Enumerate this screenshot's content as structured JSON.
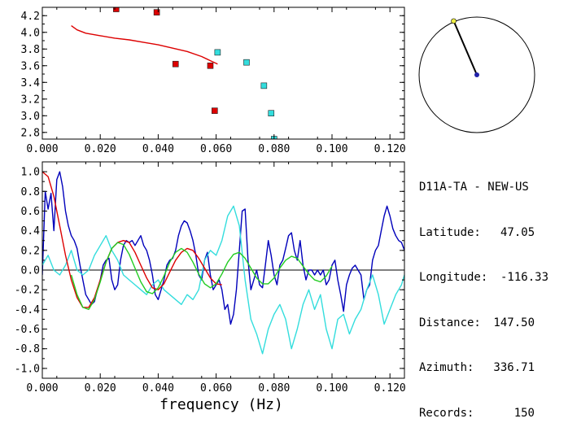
{
  "station": "D11A-TA - NEW-US",
  "info": [
    {
      "label": "Latitude:",
      "value": "47.05"
    },
    {
      "label": "Longitude:",
      "value": "-116.33"
    },
    {
      "label": "Distance:",
      "value": "147.50"
    },
    {
      "label": "Azimuth:",
      "value": "336.71"
    },
    {
      "label": "Records:",
      "value": "150"
    }
  ],
  "colors": {
    "red": "#dd0000",
    "cyan": "#33dddd",
    "blue": "#0000bb",
    "green": "#22cc22",
    "axis": "#000000",
    "dial_pointer_tip": "#eeee44"
  },
  "chart_data": [
    {
      "type": "scatter",
      "xlabel": "",
      "ylabel": "",
      "xlim": [
        0.0,
        0.125
      ],
      "ylim": [
        2.72,
        4.3
      ],
      "xticks": [
        "0.000",
        "0.020",
        "0.040",
        "0.060",
        "0.080",
        "0.100",
        "0.120"
      ],
      "yticks": [
        "2.8",
        "3.0",
        "3.2",
        "3.4",
        "3.6",
        "3.8",
        "4.0",
        "4.2"
      ],
      "series": [
        {
          "color": "red",
          "marker": "square",
          "x": [
            0.0255,
            0.0395,
            0.046,
            0.058,
            0.0595
          ],
          "y": [
            4.28,
            4.24,
            3.62,
            3.6,
            3.06
          ]
        },
        {
          "color": "cyan",
          "marker": "square",
          "x": [
            0.0605,
            0.0705,
            0.0765,
            0.079,
            0.08
          ],
          "y": [
            3.76,
            3.64,
            3.36,
            3.03,
            2.72
          ]
        },
        {
          "color": "red",
          "marker": "line",
          "x": [
            0.01,
            0.012,
            0.015,
            0.02,
            0.025,
            0.03,
            0.035,
            0.04,
            0.045,
            0.05,
            0.055,
            0.058,
            0.0605
          ],
          "y": [
            4.08,
            4.03,
            3.99,
            3.96,
            3.93,
            3.91,
            3.88,
            3.85,
            3.81,
            3.77,
            3.71,
            3.66,
            3.62
          ]
        }
      ]
    },
    {
      "type": "line",
      "xlabel": "frequency (Hz)",
      "ylabel": "",
      "xlim": [
        0.0,
        0.125
      ],
      "ylim": [
        -1.1,
        1.1
      ],
      "xticks": [
        "0.000",
        "0.020",
        "0.040",
        "0.060",
        "0.080",
        "0.100",
        "0.120"
      ],
      "yticks": [
        "1.0",
        "0.8",
        "0.6",
        "0.4",
        "0.2",
        "0.0",
        "-0.2",
        "-0.4",
        "-0.6",
        "-0.8",
        "-1.0"
      ],
      "series": [
        {
          "color": "blue",
          "x": [
            0,
            0.001,
            0.002,
            0.003,
            0.004,
            0.005,
            0.006,
            0.007,
            0.008,
            0.009,
            0.01,
            0.011,
            0.012,
            0.013,
            0.014,
            0.015,
            0.016,
            0.017,
            0.018,
            0.019,
            0.02,
            0.021,
            0.022,
            0.023,
            0.024,
            0.025,
            0.026,
            0.027,
            0.028,
            0.029,
            0.03,
            0.031,
            0.032,
            0.033,
            0.034,
            0.035,
            0.036,
            0.037,
            0.038,
            0.039,
            0.04,
            0.041,
            0.042,
            0.043,
            0.044,
            0.045,
            0.046,
            0.047,
            0.048,
            0.049,
            0.05,
            0.051,
            0.052,
            0.053,
            0.054,
            0.055,
            0.056,
            0.057,
            0.058,
            0.059,
            0.06,
            0.061,
            0.062,
            0.063,
            0.064,
            0.065,
            0.066,
            0.067,
            0.068,
            0.069,
            0.07,
            0.071,
            0.072,
            0.073,
            0.074,
            0.075,
            0.076,
            0.077,
            0.078,
            0.079,
            0.08,
            0.081,
            0.082,
            0.083,
            0.084,
            0.085,
            0.086,
            0.087,
            0.088,
            0.089,
            0.09,
            0.091,
            0.092,
            0.093,
            0.094,
            0.095,
            0.096,
            0.097,
            0.098,
            0.099,
            0.1,
            0.101,
            0.102,
            0.103,
            0.104,
            0.105,
            0.106,
            0.107,
            0.108,
            0.109,
            0.11,
            0.111,
            0.112,
            0.113,
            0.114,
            0.115,
            0.116,
            0.117,
            0.118,
            0.119,
            0.12,
            0.121,
            0.122,
            0.123,
            0.124,
            0.125
          ],
          "y": [
            -0.05,
            0.8,
            0.62,
            0.78,
            0.4,
            0.92,
            1.0,
            0.85,
            0.6,
            0.45,
            0.35,
            0.3,
            0.22,
            0.05,
            -0.1,
            -0.25,
            -0.3,
            -0.35,
            -0.32,
            -0.2,
            -0.1,
            0.05,
            0.1,
            0.12,
            -0.1,
            -0.2,
            -0.15,
            0.1,
            0.25,
            0.3,
            0.28,
            0.3,
            0.25,
            0.3,
            0.35,
            0.25,
            0.2,
            0.1,
            -0.05,
            -0.25,
            -0.3,
            -0.2,
            -0.1,
            0.05,
            0.1,
            0.12,
            0.2,
            0.35,
            0.45,
            0.5,
            0.48,
            0.4,
            0.3,
            0.15,
            -0.05,
            -0.1,
            0.1,
            0.18,
            -0.05,
            -0.2,
            -0.15,
            -0.1,
            -0.2,
            -0.4,
            -0.35,
            -0.55,
            -0.45,
            -0.2,
            0.2,
            0.6,
            0.62,
            0.1,
            -0.2,
            -0.1,
            0.0,
            -0.15,
            -0.18,
            0.05,
            0.3,
            0.15,
            -0.05,
            -0.15,
            0.05,
            0.1,
            0.22,
            0.35,
            0.38,
            0.2,
            0.1,
            0.3,
            0.05,
            -0.1,
            0.0,
            0.0,
            -0.05,
            0.0,
            -0.05,
            0.0,
            -0.15,
            -0.1,
            0.05,
            0.1,
            -0.1,
            -0.25,
            -0.42,
            -0.15,
            -0.05,
            0.02,
            0.05,
            0.0,
            -0.05,
            -0.3,
            -0.2,
            -0.15,
            0.1,
            0.2,
            0.25,
            0.4,
            0.55,
            0.65,
            0.55,
            0.42,
            0.35,
            0.3,
            0.28,
            0.2
          ]
        },
        {
          "color": "cyan",
          "x": [
            0,
            0.002,
            0.004,
            0.006,
            0.008,
            0.01,
            0.012,
            0.014,
            0.016,
            0.018,
            0.02,
            0.022,
            0.024,
            0.026,
            0.028,
            0.03,
            0.032,
            0.034,
            0.036,
            0.038,
            0.04,
            0.042,
            0.044,
            0.046,
            0.048,
            0.05,
            0.052,
            0.054,
            0.056,
            0.058,
            0.06,
            0.062,
            0.064,
            0.066,
            0.068,
            0.07,
            0.072,
            0.074,
            0.076,
            0.078,
            0.08,
            0.082,
            0.084,
            0.086,
            0.088,
            0.09,
            0.092,
            0.094,
            0.096,
            0.098,
            0.1,
            0.102,
            0.104,
            0.106,
            0.108,
            0.11,
            0.112,
            0.114,
            0.116,
            0.118,
            0.12,
            0.122,
            0.124,
            0.125
          ],
          "y": [
            0.05,
            0.15,
            0.0,
            -0.05,
            0.05,
            0.2,
            0.0,
            -0.05,
            0.0,
            0.15,
            0.25,
            0.35,
            0.2,
            0.1,
            -0.05,
            -0.1,
            -0.15,
            -0.2,
            -0.25,
            -0.15,
            -0.1,
            -0.2,
            -0.25,
            -0.3,
            -0.35,
            -0.25,
            -0.3,
            -0.2,
            0.1,
            0.2,
            0.15,
            0.3,
            0.55,
            0.65,
            0.45,
            -0.1,
            -0.5,
            -0.65,
            -0.85,
            -0.6,
            -0.45,
            -0.35,
            -0.5,
            -0.8,
            -0.6,
            -0.35,
            -0.2,
            -0.4,
            -0.25,
            -0.6,
            -0.8,
            -0.5,
            -0.45,
            -0.65,
            -0.5,
            -0.4,
            -0.2,
            -0.05,
            -0.25,
            -0.55,
            -0.4,
            -0.25,
            -0.15,
            -0.05
          ]
        },
        {
          "color": "red",
          "x": [
            0,
            0.002,
            0.004,
            0.006,
            0.008,
            0.01,
            0.012,
            0.014,
            0.016,
            0.018,
            0.02,
            0.022,
            0.024,
            0.026,
            0.028,
            0.03,
            0.032,
            0.034,
            0.036,
            0.038,
            0.04,
            0.042,
            0.044,
            0.046,
            0.048,
            0.05,
            0.052,
            0.054,
            0.056,
            0.058,
            0.06,
            0.062
          ],
          "y": [
            1.0,
            0.95,
            0.75,
            0.45,
            0.15,
            -0.1,
            -0.28,
            -0.38,
            -0.38,
            -0.28,
            -0.1,
            0.08,
            0.22,
            0.28,
            0.3,
            0.28,
            0.18,
            0.05,
            -0.08,
            -0.18,
            -0.2,
            -0.14,
            -0.02,
            0.1,
            0.18,
            0.22,
            0.2,
            0.12,
            0.02,
            -0.08,
            -0.14,
            -0.15
          ]
        },
        {
          "color": "green",
          "x": [
            0.01,
            0.012,
            0.014,
            0.016,
            0.018,
            0.02,
            0.022,
            0.024,
            0.026,
            0.028,
            0.03,
            0.032,
            0.034,
            0.036,
            0.038,
            0.04,
            0.042,
            0.044,
            0.046,
            0.048,
            0.05,
            0.052,
            0.054,
            0.056,
            0.058,
            0.06,
            0.062,
            0.064,
            0.066,
            0.068,
            0.07,
            0.072,
            0.074,
            0.076,
            0.078,
            0.08,
            0.082,
            0.084,
            0.086,
            0.088,
            0.09,
            0.092,
            0.094,
            0.096,
            0.098,
            0.1
          ],
          "y": [
            -0.05,
            -0.25,
            -0.38,
            -0.4,
            -0.3,
            -0.12,
            0.08,
            0.22,
            0.28,
            0.26,
            0.16,
            0.02,
            -0.12,
            -0.22,
            -0.24,
            -0.18,
            -0.06,
            0.08,
            0.18,
            0.22,
            0.18,
            0.08,
            -0.04,
            -0.14,
            -0.18,
            -0.14,
            -0.04,
            0.08,
            0.16,
            0.18,
            0.12,
            0.02,
            -0.08,
            -0.14,
            -0.14,
            -0.08,
            0.02,
            0.1,
            0.14,
            0.12,
            0.04,
            -0.04,
            -0.1,
            -0.12,
            -0.06,
            0.04
          ]
        }
      ]
    }
  ],
  "dial": {
    "azimuth": 336.71
  }
}
